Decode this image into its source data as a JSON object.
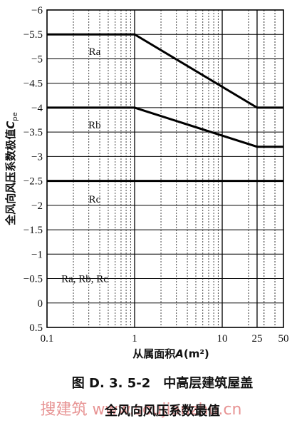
{
  "chart_data": {
    "type": "line",
    "xscale": "log",
    "xlim": [
      0.1,
      50
    ],
    "ylim": [
      0.5,
      -6
    ],
    "x_ticks": [
      {
        "value": 0.1,
        "label": "0.1"
      },
      {
        "value": 1,
        "label": "1"
      },
      {
        "value": 10,
        "label": "10"
      },
      {
        "value": 25,
        "label": "25"
      },
      {
        "value": 50,
        "label": "50"
      }
    ],
    "y_ticks": [
      {
        "value": -6,
        "label": "−6"
      },
      {
        "value": -5.5,
        "label": "−5.5"
      },
      {
        "value": -5,
        "label": "−5"
      },
      {
        "value": -4.5,
        "label": "−4.5"
      },
      {
        "value": -4,
        "label": "−4"
      },
      {
        "value": -3.5,
        "label": "−3.5"
      },
      {
        "value": -3,
        "label": "−3"
      },
      {
        "value": -2.5,
        "label": "−2.5"
      },
      {
        "value": -2,
        "label": "−2"
      },
      {
        "value": -1.5,
        "label": "−1.5"
      },
      {
        "value": -1,
        "label": "−1"
      },
      {
        "value": -0.5,
        "label": "−0.5"
      },
      {
        "value": 0,
        "label": "0"
      },
      {
        "value": 0.5,
        "label": "0.5"
      }
    ],
    "grid": true,
    "xlabel": "从属面积A(m²)",
    "ylabel": "全风向风压系数极值Cpe",
    "series": [
      {
        "name": "Ra",
        "x": [
          0.1,
          1,
          25,
          50
        ],
        "y": [
          -5.5,
          -5.5,
          -4.0,
          -4.0
        ]
      },
      {
        "name": "Rb",
        "x": [
          0.1,
          1,
          25,
          50
        ],
        "y": [
          -4.0,
          -4.0,
          -3.2,
          -3.2
        ]
      },
      {
        "name": "Rc",
        "x": [
          0.1,
          50
        ],
        "y": [
          -2.5,
          -2.5
        ]
      }
    ],
    "annotations": [
      {
        "text": "Ra",
        "x": 0.35,
        "y": -5.15
      },
      {
        "text": "Rb",
        "x": 0.35,
        "y": -3.65
      },
      {
        "text": "Rc",
        "x": 0.35,
        "y": -2.13
      },
      {
        "text": "Ra, Rb, Rc",
        "x": 0.27,
        "y": -0.5
      }
    ]
  },
  "caption": {
    "line1": "图 D. 3. 5-2　中高层建筑屋盖",
    "line2": "全风向风压系数最值"
  },
  "watermark": "搜建筑 www.soujianzhu.cn"
}
